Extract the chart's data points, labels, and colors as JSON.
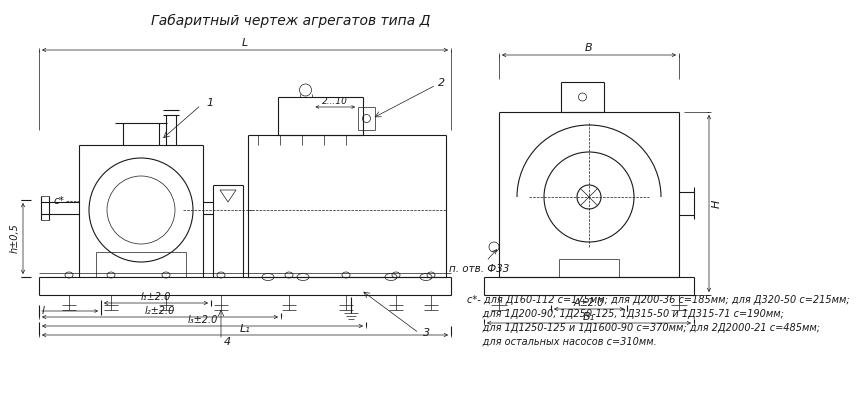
{
  "title": "Габаритный чертеж агрегатов типа Д",
  "title_fontsize": 10,
  "bg_color": "#ffffff",
  "line_color": "#1a1a1a",
  "note_lines": [
    "с*- для Д160-112 с=175мм; для Д200-36 с=185мм; для Д320-50 с=215мм;",
    "     для 1Д200-90, 1Д250-125, 1Д315-50 и 1Д315-71 с=190мм;",
    "     для 1Д1250-125 и 1Д1600-90 с=370мм; для 2Д2000-21 с=485мм;",
    "     для остальных насосов с=310мм."
  ],
  "note_fontsize": 7.0,
  "label_fontsize": 8.0,
  "dim_fontsize": 7.5
}
